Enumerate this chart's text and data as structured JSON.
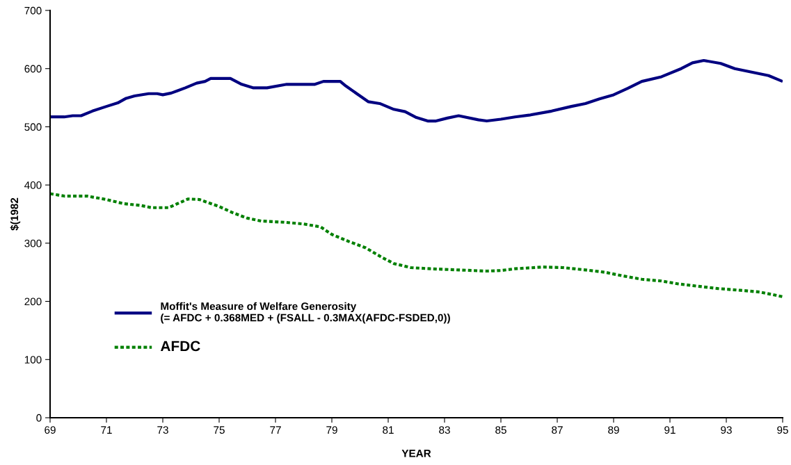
{
  "chart_data": {
    "type": "line",
    "xlabel": "YEAR",
    "ylabel": "$(1982",
    "xlim": [
      69,
      95
    ],
    "ylim": [
      0,
      700
    ],
    "xticks": [
      69,
      71,
      73,
      75,
      77,
      79,
      81,
      83,
      85,
      87,
      89,
      91,
      93,
      95
    ],
    "yticks": [
      0,
      100,
      200,
      300,
      400,
      500,
      600,
      700
    ],
    "grid": false,
    "legend": "left",
    "marker": "none",
    "series": [
      {
        "name": "Moffit's Measure of Welfare Generosity\n(= AFDC + 0.368MED + (FSALL - 0.3MAX(AFDC-FSDED,0))",
        "color": "#000080",
        "line_style": "solid",
        "x": [
          69,
          69.5,
          69.8,
          70.1,
          70.5,
          71,
          71.4,
          71.7,
          72,
          72.5,
          72.8,
          73,
          73.3,
          73.8,
          74.2,
          74.5,
          74.7,
          75.4,
          75.8,
          76.2,
          76.7,
          77.4,
          78.4,
          78.7,
          79.3,
          79.5,
          80,
          80.3,
          80.7,
          81.2,
          81.6,
          82,
          82.4,
          82.7,
          83.1,
          83.5,
          84.2,
          84.5,
          85,
          85.5,
          86,
          86.8,
          87.5,
          88,
          88.5,
          89,
          89.5,
          90,
          90.7,
          91.4,
          91.8,
          92.2,
          92.8,
          93.3,
          94.5,
          95
        ],
        "values": [
          517,
          517,
          519,
          519,
          527,
          535,
          541,
          549,
          553,
          557,
          557,
          555,
          558,
          567,
          575,
          578,
          583,
          583,
          573,
          567,
          567,
          573,
          573,
          578,
          578,
          570,
          553,
          543,
          540,
          530,
          526,
          516,
          510,
          510,
          515,
          519,
          512,
          510,
          513,
          517,
          520,
          527,
          535,
          540,
          548,
          555,
          566,
          578,
          586,
          600,
          610,
          614,
          609,
          600,
          588,
          578
        ]
      },
      {
        "name": "AFDC",
        "color": "#008000",
        "line_style": "dotted",
        "x": [
          69,
          69.5,
          70.3,
          71,
          71.6,
          72.2,
          72.6,
          73.2,
          73.9,
          74.3,
          75,
          75.5,
          76,
          76.5,
          77.3,
          78,
          78.6,
          79,
          79.6,
          80.2,
          80.8,
          81.2,
          81.8,
          82.5,
          83.5,
          84.5,
          85,
          85.5,
          86.5,
          87.2,
          88,
          88.7,
          89.3,
          90,
          90.7,
          91.3,
          92,
          92.7,
          93.5,
          94.2,
          95
        ],
        "values": [
          385,
          381,
          381,
          375,
          368,
          365,
          361,
          361,
          376,
          375,
          363,
          352,
          343,
          338,
          336,
          333,
          328,
          315,
          303,
          292,
          275,
          265,
          258,
          256,
          254,
          252,
          253,
          256,
          259,
          258,
          254,
          250,
          244,
          238,
          235,
          230,
          226,
          222,
          219,
          216,
          208
        ]
      }
    ]
  }
}
